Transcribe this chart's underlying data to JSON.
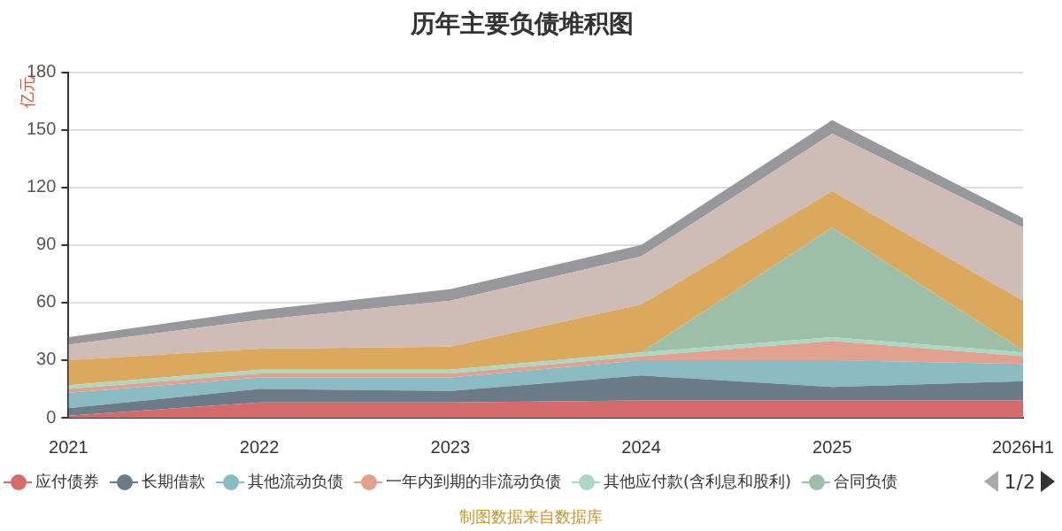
{
  "chart_data": {
    "type": "area",
    "title": "历年主要负债堆积图",
    "ylabel": "亿元",
    "categories": [
      "2021",
      "2022",
      "2023",
      "2024",
      "2025",
      "2026H1"
    ],
    "stacked": true,
    "ylim": [
      0,
      180
    ],
    "yticks": [
      0,
      30,
      60,
      90,
      120,
      150,
      180
    ],
    "grid": "y",
    "legend": "bottom",
    "marker": "none",
    "series": [
      {
        "name": "应付债券",
        "color": "#d46a6a",
        "values": [
          1,
          8,
          8,
          9,
          9,
          9
        ]
      },
      {
        "name": "长期借款",
        "color": "#6b7b87",
        "values": [
          4,
          7,
          6,
          13,
          7,
          10
        ]
      },
      {
        "name": "其他流动负债",
        "color": "#8cbcc3",
        "values": [
          8,
          6,
          7,
          8,
          14,
          9
        ]
      },
      {
        "name": "一年内到期的非流动负债",
        "color": "#e2a08e",
        "values": [
          2,
          2,
          2,
          2,
          10,
          4
        ]
      },
      {
        "name": "其他应付款(含利息和股利)",
        "color": "#a9d8c4",
        "values": [
          2,
          2,
          2,
          2,
          2,
          2
        ]
      },
      {
        "name": "合同负债",
        "color": "#9dbfa8",
        "values": [
          0,
          0,
          0,
          0,
          57,
          1
        ]
      },
      {
        "color": "#dba95d",
        "values": [
          13,
          11,
          12,
          25,
          19,
          26
        ]
      },
      {
        "color": "#cfbcb7",
        "values": [
          8,
          15,
          24,
          25,
          30,
          38
        ]
      },
      {
        "color": "#97989c",
        "values": [
          4,
          5,
          6,
          6,
          7,
          5
        ]
      }
    ],
    "annotations": [
      "1/2",
      "制图数据来自数据库"
    ]
  }
}
